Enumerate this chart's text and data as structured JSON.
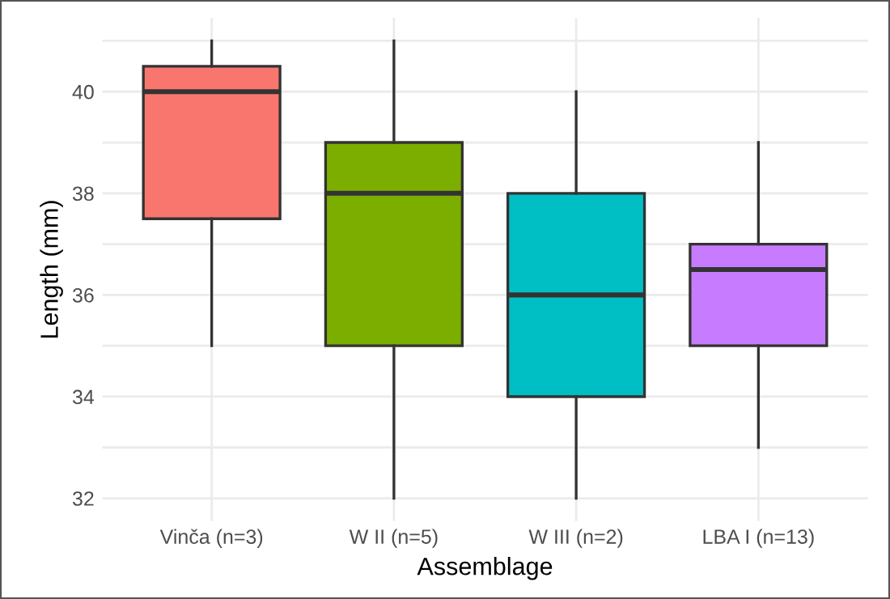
{
  "chart_data": {
    "type": "box",
    "xlabel": "Assemblage",
    "ylabel": "Length (mm)",
    "categories": [
      "Vinča (n=3)",
      "W II (n=5)",
      "W III (n=2)",
      "LBA I (n=13)"
    ],
    "colors": [
      "#f8766d",
      "#7cae00",
      "#00bfc4",
      "#c77cff"
    ],
    "boxes": [
      {
        "low": 35,
        "q1": 37.5,
        "median": 40,
        "q3": 40.5,
        "high": 41
      },
      {
        "low": 32,
        "q1": 35,
        "median": 38,
        "q3": 39,
        "high": 41
      },
      {
        "low": 32,
        "q1": 34,
        "median": 36,
        "q3": 38,
        "high": 40
      },
      {
        "low": 33,
        "q1": 35,
        "median": 36.5,
        "q3": 37,
        "high": 39
      }
    ],
    "ylim": [
      31.55,
      41.45
    ],
    "yticks": [
      32,
      {
        "value": 33,
        "label": null
      },
      34,
      {
        "value": 35,
        "label": null
      },
      36,
      {
        "value": 37,
        "label": null
      },
      38,
      {
        "value": 39,
        "label": null
      },
      40,
      {
        "value": 41,
        "label": null
      }
    ],
    "grid": true
  }
}
